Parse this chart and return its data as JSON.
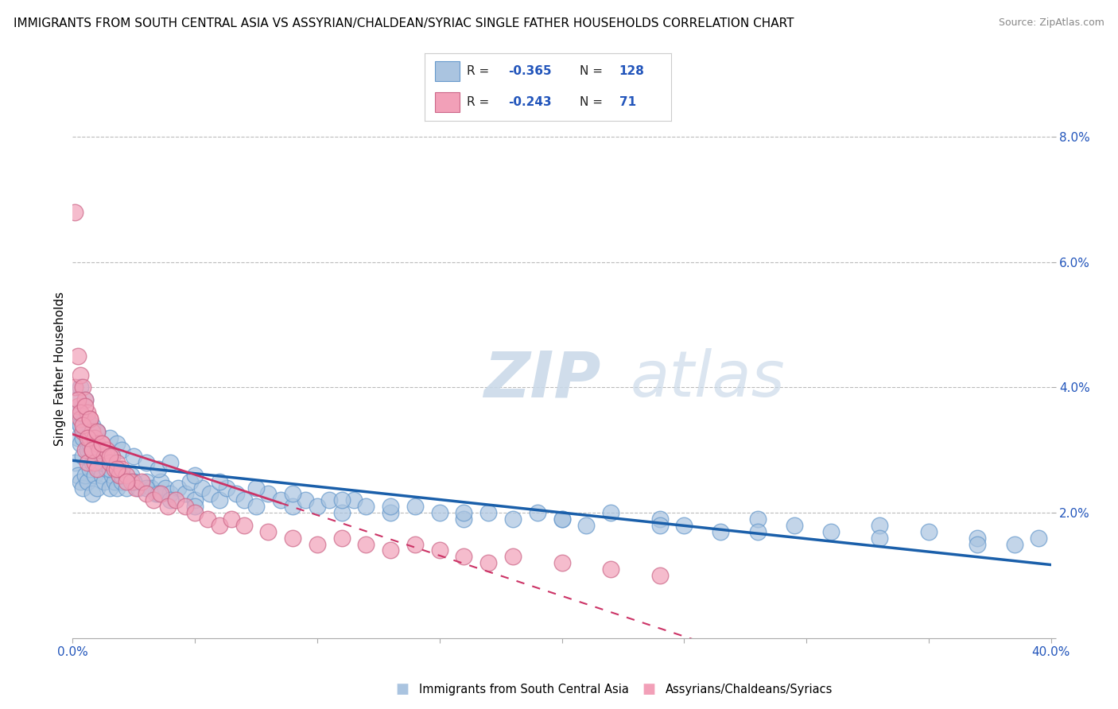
{
  "title": "IMMIGRANTS FROM SOUTH CENTRAL ASIA VS ASSYRIAN/CHALDEAN/SYRIAC SINGLE FATHER HOUSEHOLDS CORRELATION CHART",
  "source": "Source: ZipAtlas.com",
  "ylabel": "Single Father Households",
  "xlim": [
    0,
    0.4
  ],
  "ylim": [
    0,
    0.086
  ],
  "yticks": [
    0.0,
    0.02,
    0.04,
    0.06,
    0.08
  ],
  "ytick_labels": [
    "",
    "2.0%",
    "4.0%",
    "6.0%",
    "8.0%"
  ],
  "legend_r_blue": "-0.365",
  "legend_n_blue": "128",
  "legend_r_pink": "-0.243",
  "legend_n_pink": "71",
  "blue_color": "#aac4e0",
  "pink_color": "#f2a0b8",
  "trend_blue_color": "#1a5faa",
  "trend_pink_color": "#cc3366",
  "legend_label_blue": "Immigrants from South Central Asia",
  "legend_label_pink": "Assyrians/Chaldeans/Syriacs",
  "blue_scatter_x": [
    0.001,
    0.002,
    0.002,
    0.003,
    0.003,
    0.004,
    0.004,
    0.005,
    0.005,
    0.006,
    0.006,
    0.007,
    0.007,
    0.008,
    0.008,
    0.009,
    0.009,
    0.01,
    0.01,
    0.011,
    0.012,
    0.013,
    0.014,
    0.015,
    0.016,
    0.017,
    0.018,
    0.019,
    0.02,
    0.022,
    0.024,
    0.025,
    0.027,
    0.03,
    0.032,
    0.034,
    0.036,
    0.038,
    0.04,
    0.043,
    0.046,
    0.048,
    0.05,
    0.053,
    0.056,
    0.06,
    0.063,
    0.067,
    0.07,
    0.075,
    0.08,
    0.085,
    0.09,
    0.095,
    0.1,
    0.105,
    0.11,
    0.115,
    0.12,
    0.13,
    0.14,
    0.15,
    0.16,
    0.17,
    0.18,
    0.19,
    0.2,
    0.21,
    0.22,
    0.24,
    0.25,
    0.265,
    0.28,
    0.295,
    0.31,
    0.33,
    0.35,
    0.37,
    0.385,
    0.395,
    0.002,
    0.003,
    0.004,
    0.005,
    0.006,
    0.007,
    0.008,
    0.01,
    0.012,
    0.015,
    0.018,
    0.02,
    0.025,
    0.03,
    0.035,
    0.04,
    0.05,
    0.06,
    0.075,
    0.09,
    0.11,
    0.13,
    0.16,
    0.2,
    0.24,
    0.28,
    0.33,
    0.37,
    0.001,
    0.002,
    0.003,
    0.003,
    0.004,
    0.005,
    0.006,
    0.006,
    0.007,
    0.008,
    0.009,
    0.01,
    0.012,
    0.015,
    0.02,
    0.025,
    0.03,
    0.035,
    0.04,
    0.05
  ],
  "blue_scatter_y": [
    0.028,
    0.026,
    0.032,
    0.025,
    0.031,
    0.024,
    0.029,
    0.026,
    0.033,
    0.025,
    0.031,
    0.027,
    0.03,
    0.023,
    0.028,
    0.026,
    0.032,
    0.024,
    0.029,
    0.027,
    0.026,
    0.025,
    0.027,
    0.024,
    0.026,
    0.025,
    0.024,
    0.026,
    0.025,
    0.024,
    0.026,
    0.025,
    0.024,
    0.025,
    0.024,
    0.023,
    0.025,
    0.024,
    0.023,
    0.024,
    0.023,
    0.025,
    0.022,
    0.024,
    0.023,
    0.022,
    0.024,
    0.023,
    0.022,
    0.021,
    0.023,
    0.022,
    0.021,
    0.022,
    0.021,
    0.022,
    0.02,
    0.022,
    0.021,
    0.02,
    0.021,
    0.02,
    0.019,
    0.02,
    0.019,
    0.02,
    0.019,
    0.018,
    0.02,
    0.019,
    0.018,
    0.017,
    0.019,
    0.018,
    0.017,
    0.018,
    0.017,
    0.016,
    0.015,
    0.016,
    0.036,
    0.034,
    0.033,
    0.035,
    0.032,
    0.034,
    0.031,
    0.033,
    0.03,
    0.032,
    0.031,
    0.03,
    0.029,
    0.028,
    0.027,
    0.028,
    0.026,
    0.025,
    0.024,
    0.023,
    0.022,
    0.021,
    0.02,
    0.019,
    0.018,
    0.017,
    0.016,
    0.015,
    0.038,
    0.036,
    0.034,
    0.04,
    0.032,
    0.038,
    0.03,
    0.035,
    0.031,
    0.034,
    0.029,
    0.033,
    0.028,
    0.027,
    0.026,
    0.025,
    0.024,
    0.023,
    0.022,
    0.021
  ],
  "pink_scatter_x": [
    0.001,
    0.001,
    0.002,
    0.002,
    0.003,
    0.003,
    0.004,
    0.004,
    0.005,
    0.005,
    0.006,
    0.006,
    0.007,
    0.007,
    0.008,
    0.008,
    0.009,
    0.009,
    0.01,
    0.01,
    0.011,
    0.012,
    0.013,
    0.014,
    0.015,
    0.016,
    0.017,
    0.018,
    0.019,
    0.02,
    0.022,
    0.024,
    0.026,
    0.028,
    0.03,
    0.033,
    0.036,
    0.039,
    0.042,
    0.046,
    0.05,
    0.055,
    0.06,
    0.065,
    0.07,
    0.08,
    0.09,
    0.1,
    0.11,
    0.12,
    0.13,
    0.14,
    0.15,
    0.16,
    0.17,
    0.18,
    0.2,
    0.22,
    0.24,
    0.002,
    0.003,
    0.004,
    0.005,
    0.006,
    0.007,
    0.008,
    0.01,
    0.012,
    0.015,
    0.018,
    0.022
  ],
  "pink_scatter_y": [
    0.068,
    0.04,
    0.045,
    0.037,
    0.042,
    0.035,
    0.04,
    0.033,
    0.038,
    0.03,
    0.036,
    0.028,
    0.035,
    0.032,
    0.033,
    0.03,
    0.032,
    0.028,
    0.031,
    0.027,
    0.03,
    0.031,
    0.029,
    0.03,
    0.028,
    0.029,
    0.027,
    0.028,
    0.026,
    0.027,
    0.026,
    0.025,
    0.024,
    0.025,
    0.023,
    0.022,
    0.023,
    0.021,
    0.022,
    0.021,
    0.02,
    0.019,
    0.018,
    0.019,
    0.018,
    0.017,
    0.016,
    0.015,
    0.016,
    0.015,
    0.014,
    0.015,
    0.014,
    0.013,
    0.012,
    0.013,
    0.012,
    0.011,
    0.01,
    0.038,
    0.036,
    0.034,
    0.037,
    0.032,
    0.035,
    0.03,
    0.033,
    0.031,
    0.029,
    0.027,
    0.025
  ]
}
